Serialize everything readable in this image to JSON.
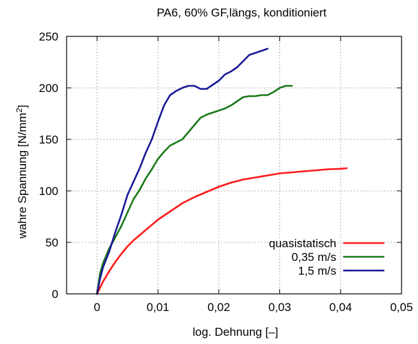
{
  "chart_data": {
    "type": "line",
    "title": "PA6, 60% GF,längs, konditioniert",
    "xlabel": "log. Dehnung [–]",
    "ylabel": "wahre Spannung [N/mm²]",
    "xlim": [
      -0.005,
      0.05
    ],
    "ylim": [
      0,
      250
    ],
    "xticks": [
      0,
      0.01,
      0.02,
      0.03,
      0.04,
      0.05
    ],
    "xtick_labels": [
      "0",
      "0,01",
      "0,02",
      "0,03",
      "0,04",
      "0,05"
    ],
    "yticks": [
      0,
      50,
      100,
      150,
      200,
      250
    ],
    "ytick_labels": [
      "0",
      "50",
      "100",
      "150",
      "200",
      "250"
    ],
    "grid": true,
    "grid_style": "dotted",
    "legend_position": "bottom-right",
    "series": [
      {
        "name": "quasistatisch",
        "color": "#ff1a1a",
        "x": [
          0,
          0.001,
          0.002,
          0.003,
          0.004,
          0.005,
          0.006,
          0.007,
          0.008,
          0.009,
          0.01,
          0.012,
          0.014,
          0.016,
          0.018,
          0.02,
          0.022,
          0.024,
          0.026,
          0.028,
          0.03,
          0.032,
          0.034,
          0.036,
          0.038,
          0.04,
          0.041
        ],
        "y": [
          0,
          12,
          22,
          31,
          39,
          46,
          52,
          57,
          62,
          67,
          72,
          80,
          88,
          94,
          99,
          104,
          108,
          111,
          113,
          115,
          117,
          118,
          119,
          120,
          121,
          121.5,
          122
        ]
      },
      {
        "name": "0,35 m/s",
        "color": "#1a7a1a",
        "x": [
          0,
          0.0005,
          0.001,
          0.002,
          0.003,
          0.004,
          0.005,
          0.006,
          0.007,
          0.008,
          0.009,
          0.01,
          0.011,
          0.012,
          0.013,
          0.014,
          0.015,
          0.016,
          0.017,
          0.018,
          0.019,
          0.02,
          0.021,
          0.022,
          0.023,
          0.024,
          0.025,
          0.026,
          0.027,
          0.028,
          0.029,
          0.03,
          0.031,
          0.032
        ],
        "y": [
          0,
          20,
          30,
          44,
          55,
          66,
          79,
          92,
          101,
          112,
          121,
          131,
          138,
          144,
          147,
          150,
          157,
          164,
          171,
          174,
          176,
          178,
          180,
          183,
          187,
          191,
          192,
          192,
          193,
          193,
          196,
          200,
          202,
          202
        ]
      },
      {
        "name": "1,5 m/s",
        "color": "#1a1a99",
        "x": [
          0,
          0.0005,
          0.001,
          0.002,
          0.003,
          0.004,
          0.005,
          0.006,
          0.007,
          0.008,
          0.009,
          0.01,
          0.011,
          0.012,
          0.013,
          0.014,
          0.015,
          0.016,
          0.017,
          0.018,
          0.019,
          0.02,
          0.021,
          0.022,
          0.023,
          0.024,
          0.025,
          0.026,
          0.027,
          0.028
        ],
        "y": [
          0,
          15,
          26,
          41,
          60,
          77,
          96,
          109,
          122,
          137,
          150,
          167,
          183,
          193,
          197,
          200,
          202,
          202,
          199,
          199,
          203,
          207,
          213,
          216,
          220,
          226,
          232,
          234,
          236,
          238
        ]
      }
    ]
  }
}
